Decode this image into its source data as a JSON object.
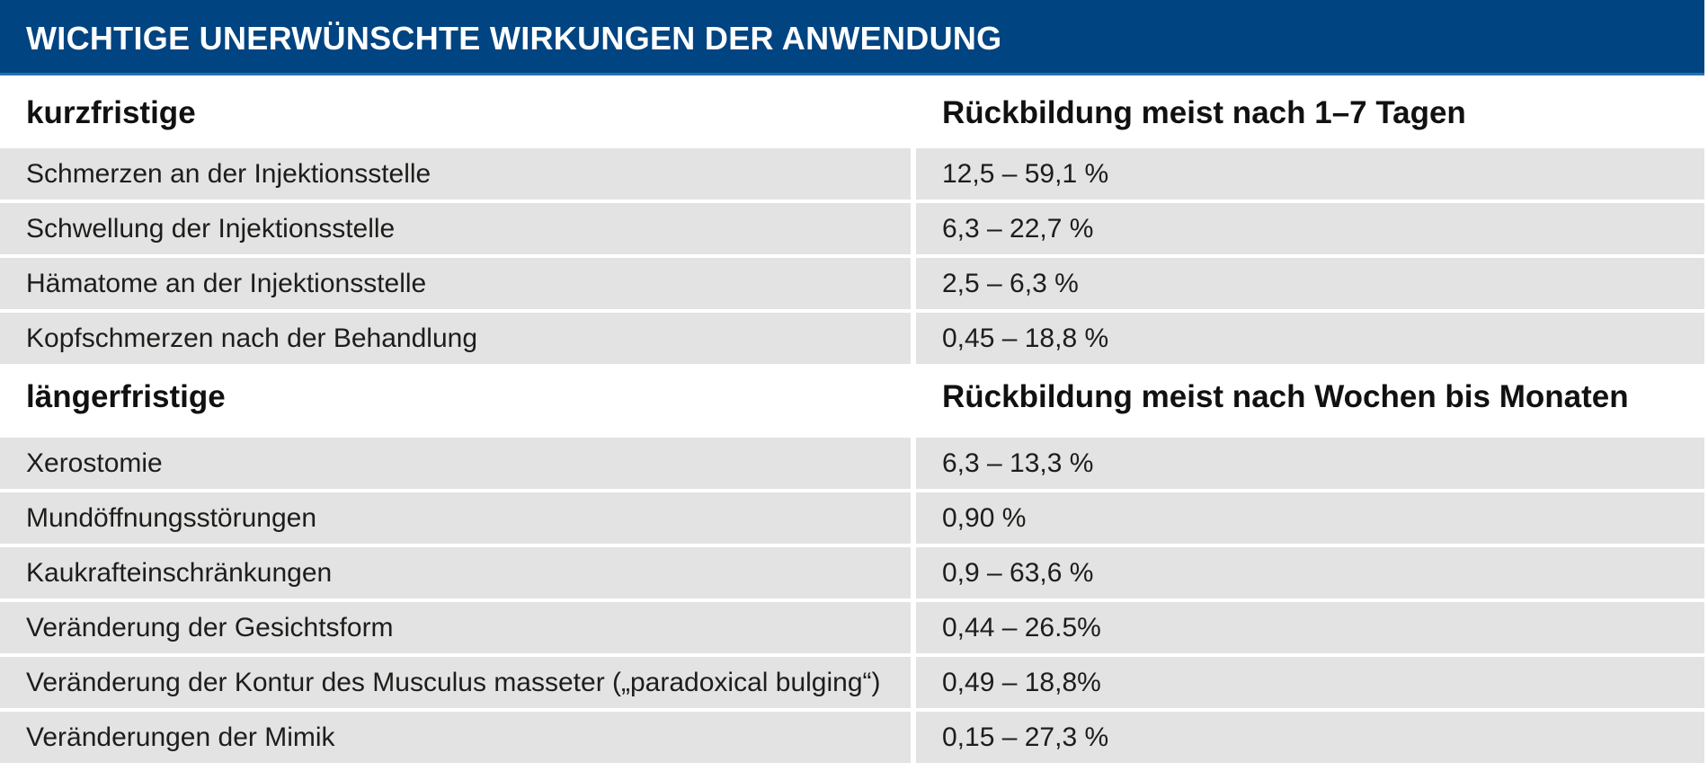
{
  "title": "WICHTIGE UNERWÜNSCHTE WIRKUNGEN DER ANWENDUNG",
  "sections": [
    {
      "heading": "kurzfristige",
      "subheading": "Rückbildung meist nach 1–7 Tagen",
      "rows": [
        {
          "effect": "Schmerzen an der Injektionsstelle",
          "rate": "12,5 – 59,1 %"
        },
        {
          "effect": "Schwellung der Injektionsstelle",
          "rate": "6,3 – 22,7 %"
        },
        {
          "effect": "Hämatome an der Injektionsstelle",
          "rate": "2,5 – 6,3 %"
        },
        {
          "effect": "Kopfschmerzen nach der Behandlung",
          "rate": "0,45 – 18,8 %"
        }
      ]
    },
    {
      "heading": "längerfristige",
      "subheading": "Rückbildung meist nach Wochen bis Monaten",
      "rows": [
        {
          "effect": "Xerostomie",
          "rate": "6,3 – 13,3 %"
        },
        {
          "effect": "Mundöffnungsstörungen",
          "rate": "0,90 %"
        },
        {
          "effect": "Kaukrafteinschränkungen",
          "rate": "0,9 – 63,6 %"
        },
        {
          "effect": "Veränderung der Gesichtsform",
          "rate": "0,44 – 26.5%"
        },
        {
          "effect": "Veränderung der Kontur des Musculus masseter („paradoxical bulging“)",
          "rate": "0,49 – 18,8%"
        },
        {
          "effect": "Veränderungen der Mimik",
          "rate": "0,15 – 27,3 %"
        }
      ]
    }
  ],
  "colors": {
    "header_bg": "#004482",
    "row_bg": "#e3e3e3"
  }
}
